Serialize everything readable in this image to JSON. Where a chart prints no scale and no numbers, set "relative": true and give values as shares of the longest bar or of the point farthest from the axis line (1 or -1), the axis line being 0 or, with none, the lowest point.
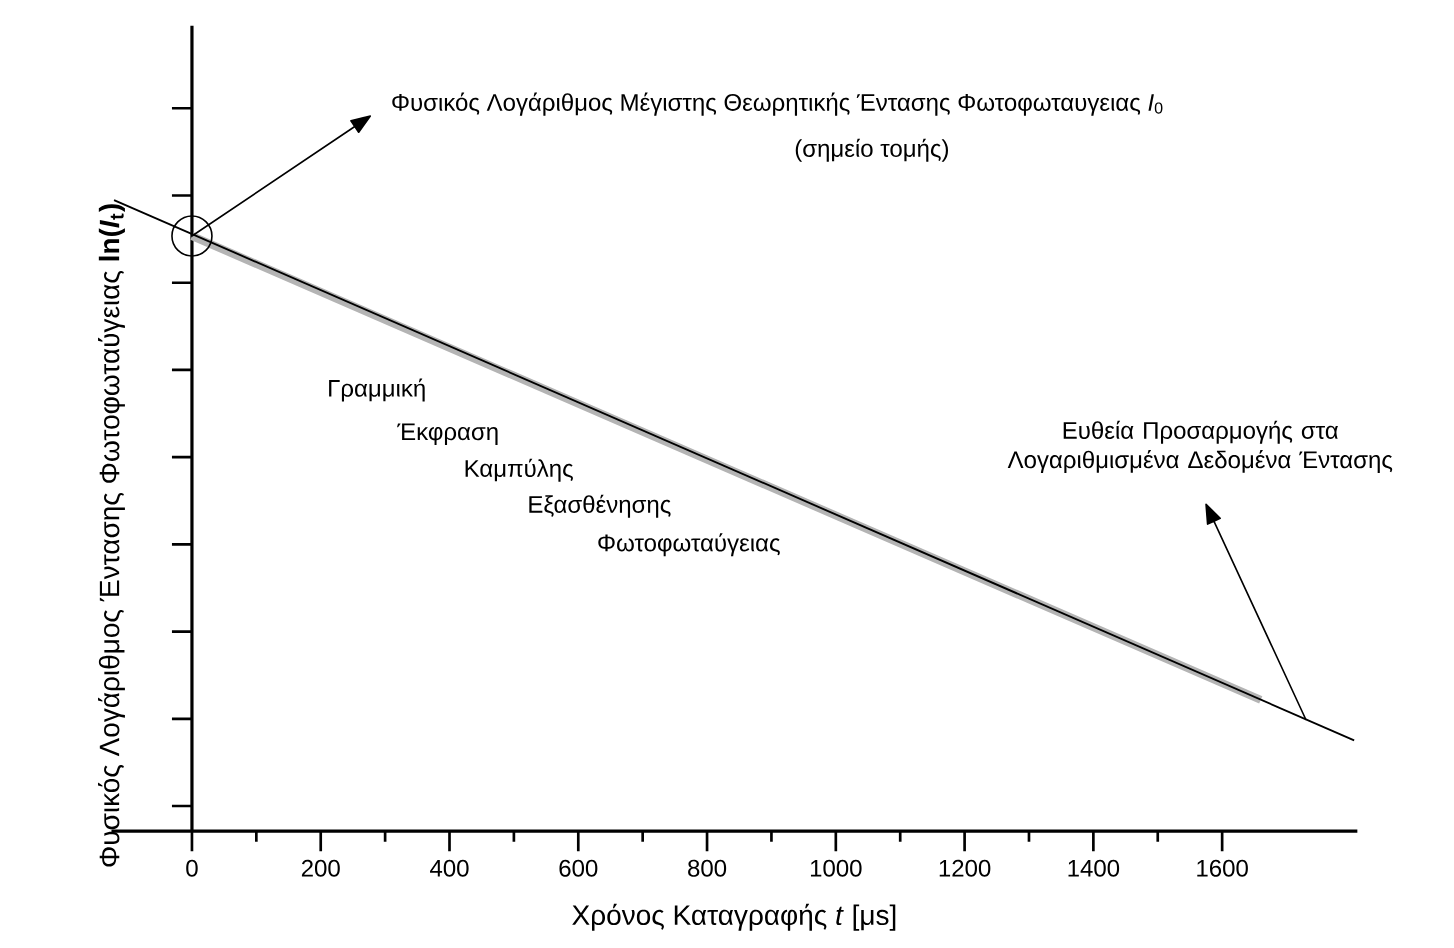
{
  "chart_data": {
    "type": "line",
    "relative": true,
    "xlabel": "Χρόνος Καταγραφής *t* [μs]",
    "ylabel": "Φυσικός Λογάριθμος Έντασης Φωτοφωταύγειας **ln(*I*$_{t}$)**",
    "xlim": [
      -125,
      1810
    ],
    "xticks": [
      0,
      200,
      400,
      600,
      800,
      1000,
      1200,
      1400,
      1600
    ],
    "tick_labels": "x",
    "line_style": "solid",
    "series": [
      {
        "color": "#b4b4b4",
        "x": [
          0,
          1660
        ],
        "values": [
          0.943,
          0.208
        ]
      },
      {
        "color": "#000000",
        "x": [
          -121,
          1805
        ],
        "values": [
          1.0,
          0.144
        ]
      }
    ],
    "annotations": [
      {
        "text": "Φυσικός Λογάριθμος Μέγιστης Θεωρητικής Έντασης Φωτοφωταυγειας *I*$_{0}$"
      },
      "(σημείο τομής)",
      "Γραμμική",
      "Έκφραση",
      "Καμπύλης",
      "Εξασθένησης",
      "Φωτοφωταύγειας",
      {
        "text": "Ευθεία Προσαρμογής στα Λογαριθμισμένα Δεδομένα Έντασης"
      }
    ]
  }
}
